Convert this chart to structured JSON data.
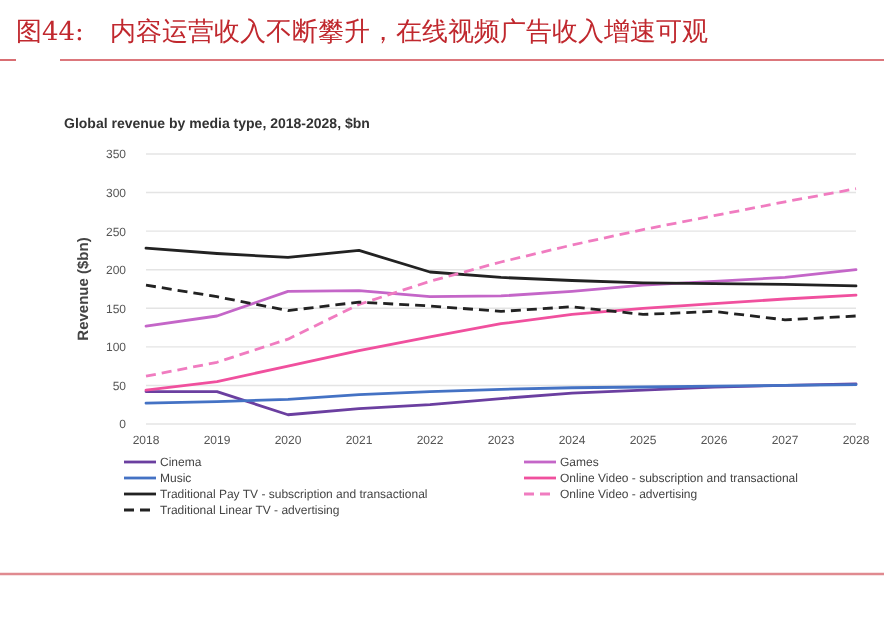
{
  "chart_data": {
    "type": "line",
    "title": "图44:　内容运营收入不断攀升，在线视频广告收入增速可观",
    "subtitle": "Global revenue by media type, 2018-2028, $bn",
    "ylabel": "Revenue ($bn)",
    "x": [
      2018,
      2019,
      2020,
      2021,
      2022,
      2023,
      2024,
      2025,
      2026,
      2027,
      2028
    ],
    "xlim": [
      2018,
      2028
    ],
    "xticks": [
      2018,
      2019,
      2020,
      2021,
      2022,
      2023,
      2024,
      2025,
      2026,
      2027,
      2028
    ],
    "ylim": [
      0,
      350
    ],
    "yticks": [
      0,
      50,
      100,
      150,
      200,
      250,
      300,
      350
    ],
    "grid": "y",
    "legend": "bottom",
    "marker": "none",
    "series": [
      {
        "name": "Cinema",
        "color": "#6b3fa0",
        "line_style": "solid",
        "values": [
          42,
          42,
          12,
          20,
          25,
          33,
          40,
          44,
          48,
          50,
          52
        ]
      },
      {
        "name": "Games",
        "color": "#c466c8",
        "line_style": "solid",
        "values": [
          127,
          140,
          172,
          173,
          165,
          166,
          172,
          180,
          185,
          190,
          200
        ]
      },
      {
        "name": "Music",
        "color": "#4472c4",
        "line_style": "solid",
        "values": [
          27,
          29,
          32,
          38,
          42,
          45,
          47,
          48,
          49,
          50,
          51
        ]
      },
      {
        "name": "Online Video - subscription and transactional",
        "color": "#f0509e",
        "line_style": "solid",
        "values": [
          44,
          55,
          75,
          95,
          113,
          130,
          142,
          150,
          156,
          162,
          167
        ]
      },
      {
        "name": "Traditional Pay TV - subscription and transactional",
        "color": "#222222",
        "line_style": "solid",
        "values": [
          228,
          221,
          216,
          225,
          197,
          190,
          186,
          183,
          182,
          181,
          179
        ]
      },
      {
        "name": "Online Video - advertising",
        "color": "#f07cc0",
        "line_style": "dashed",
        "values": [
          62,
          80,
          110,
          155,
          185,
          210,
          232,
          252,
          270,
          288,
          305
        ]
      },
      {
        "name": "Traditional Linear TV - advertising",
        "color": "#222222",
        "line_style": "dashed",
        "values": [
          180,
          165,
          147,
          158,
          153,
          146,
          152,
          142,
          146,
          135,
          140
        ]
      }
    ]
  }
}
